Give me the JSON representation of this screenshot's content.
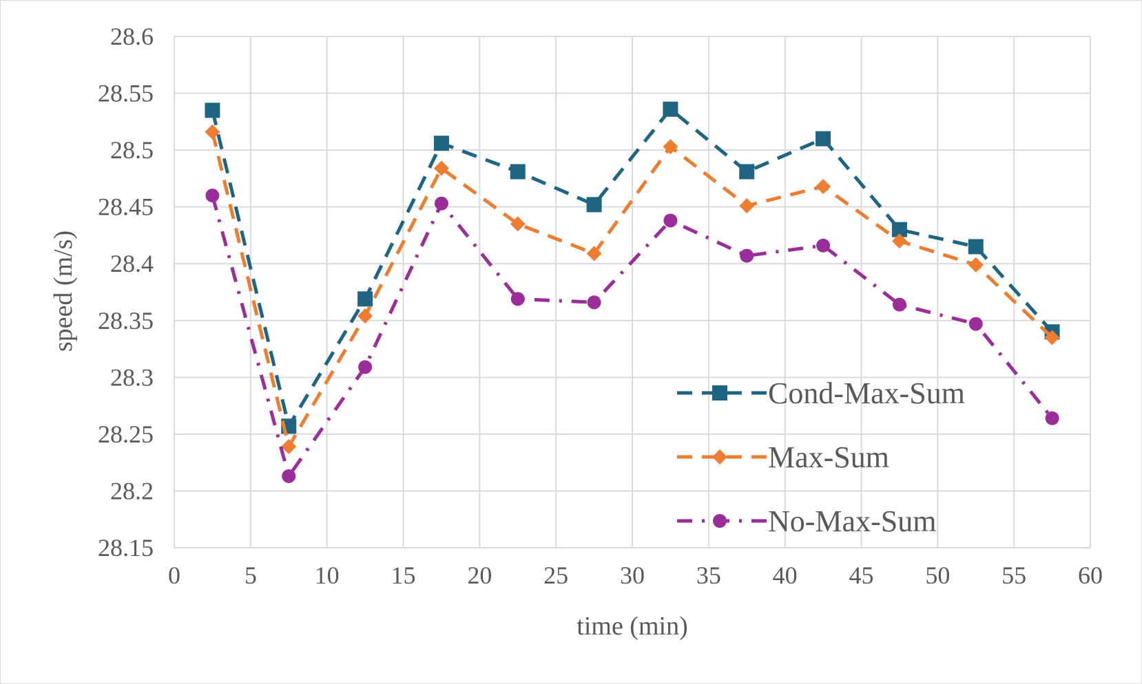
{
  "chart_data": {
    "type": "line",
    "xlabel": "time (min)",
    "ylabel": "speed (m/s)",
    "xlim": [
      0,
      60
    ],
    "ylim": [
      28.15,
      28.6
    ],
    "x_ticks": [
      "0",
      "5",
      "10",
      "15",
      "20",
      "25",
      "30",
      "35",
      "40",
      "45",
      "50",
      "55",
      "60"
    ],
    "y_ticks": [
      "28.15",
      "28.2",
      "28.25",
      "28.3",
      "28.35",
      "28.4",
      "28.45",
      "28.5",
      "28.55",
      "28.6"
    ],
    "grid": true,
    "legend_position": "bottom-right",
    "x": [
      2.5,
      7.5,
      12.5,
      17.5,
      22.5,
      27.5,
      32.5,
      37.5,
      42.5,
      47.5,
      52.5,
      57.5
    ],
    "series": [
      {
        "name": "Cond-Max-Sum",
        "color": "#1f6482",
        "marker": "square",
        "dash": "dashed",
        "values": [
          28.535,
          28.257,
          28.369,
          28.506,
          28.481,
          28.452,
          28.536,
          28.481,
          28.51,
          28.43,
          28.415,
          28.34
        ]
      },
      {
        "name": "Max-Sum",
        "color": "#ed7d31",
        "marker": "diamond",
        "dash": "dashed",
        "values": [
          28.516,
          28.239,
          28.354,
          28.484,
          28.435,
          28.409,
          28.503,
          28.451,
          28.468,
          28.42,
          28.399,
          28.335
        ]
      },
      {
        "name": "No-Max-Sum",
        "color": "#9b2d9b",
        "marker": "circle",
        "dash": "dashdot",
        "values": [
          28.46,
          28.213,
          28.309,
          28.453,
          28.369,
          28.366,
          28.438,
          28.407,
          28.416,
          28.364,
          28.347,
          28.264
        ]
      }
    ]
  }
}
